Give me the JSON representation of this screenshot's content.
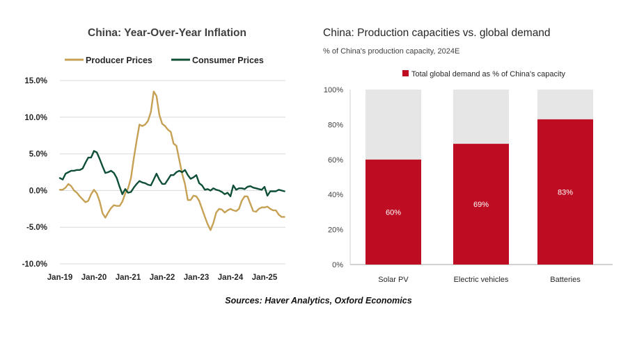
{
  "colors": {
    "producer": "#C6A154",
    "consumer": "#0F4F36",
    "demand": "#BE0D22",
    "capacity": "#E6E6E6",
    "grid": "#D9D9D9"
  },
  "chart_data": [
    {
      "type": "line",
      "title": "China: Year-Over-Year Inflation",
      "legend_position": "top",
      "x_ticks": [
        "Jan-19",
        "Jan-20",
        "Jan-21",
        "Jan-22",
        "Jan-23",
        "Jan-24",
        "Jan-25"
      ],
      "y_ticks": [
        "15.0%",
        "10.0%",
        "5.0%",
        "0.0%",
        "-5.0%",
        "-10.0%"
      ],
      "ylim": [
        -10,
        15
      ],
      "x_start": "2019-01",
      "grid": "horizontal",
      "series": [
        {
          "name": "Producer Prices",
          "values": [
            0.1,
            0.1,
            0.4,
            0.9,
            0.6,
            0.0,
            -0.3,
            -0.8,
            -1.2,
            -1.6,
            -1.4,
            -0.5,
            0.1,
            -0.4,
            -1.5,
            -3.1,
            -3.7,
            -3.0,
            -2.4,
            -2.0,
            -2.1,
            -2.1,
            -1.5,
            -0.4,
            0.3,
            1.7,
            4.4,
            6.8,
            9.0,
            8.8,
            9.0,
            9.5,
            10.7,
            13.5,
            12.9,
            10.3,
            9.1,
            8.8,
            8.3,
            8.0,
            6.4,
            6.1,
            4.2,
            2.3,
            0.9,
            -1.3,
            -1.3,
            -0.7,
            -0.8,
            -1.4,
            -2.5,
            -3.6,
            -4.6,
            -5.4,
            -4.4,
            -3.0,
            -2.5,
            -2.6,
            -3.0,
            -2.7,
            -2.5,
            -2.7,
            -2.8,
            -2.5,
            -1.4,
            -0.8,
            -0.8,
            -1.8,
            -2.8,
            -2.9,
            -2.5,
            -2.3,
            -2.3,
            -2.2,
            -2.5,
            -2.7,
            -2.7,
            -3.3,
            -3.6,
            -3.6
          ],
          "color": "#C6A154"
        },
        {
          "name": "Consumer Prices",
          "values": [
            1.7,
            1.5,
            2.3,
            2.5,
            2.7,
            2.7,
            2.8,
            2.8,
            3.0,
            3.8,
            4.5,
            4.5,
            5.4,
            5.2,
            4.3,
            3.3,
            2.4,
            2.5,
            2.7,
            2.4,
            1.7,
            0.5,
            -0.5,
            0.2,
            -0.3,
            -0.2,
            0.4,
            0.9,
            1.3,
            1.1,
            1.0,
            0.8,
            0.7,
            1.5,
            2.3,
            1.5,
            0.9,
            0.9,
            1.5,
            2.1,
            2.1,
            2.5,
            2.7,
            2.5,
            2.8,
            2.1,
            1.6,
            1.8,
            2.1,
            1.0,
            0.7,
            0.1,
            0.2,
            0.0,
            0.3,
            0.1,
            0.0,
            -0.2,
            -0.5,
            -0.3,
            -0.8,
            0.7,
            0.1,
            0.3,
            0.3,
            0.2,
            0.5,
            0.6,
            0.4,
            0.3,
            0.2,
            0.1,
            0.5,
            -0.7,
            -0.1,
            -0.1,
            -0.1,
            0.1,
            0.0,
            -0.1
          ],
          "color": "#0F4F36"
        }
      ]
    },
    {
      "type": "bar",
      "stacked": true,
      "title": "China: Production capacities vs. global demand",
      "subtitle": "% of China's production capacity, 2024E",
      "legend_position": "top",
      "categories": [
        "Solar PV",
        "Electric vehicles",
        "Batteries"
      ],
      "y_ticks": [
        "100%",
        "80%",
        "60%",
        "40%",
        "20%",
        "0%"
      ],
      "ylim": [
        0,
        100
      ],
      "series": [
        {
          "name": "Total global demand as % of China's capacity",
          "values": [
            60,
            69,
            83
          ],
          "labels": [
            "60%",
            "69%",
            "83%"
          ],
          "color": "#BE0D22"
        }
      ],
      "capacity_total": 100
    }
  ],
  "footer": "Sources: Haver Analytics, Oxford Economics"
}
